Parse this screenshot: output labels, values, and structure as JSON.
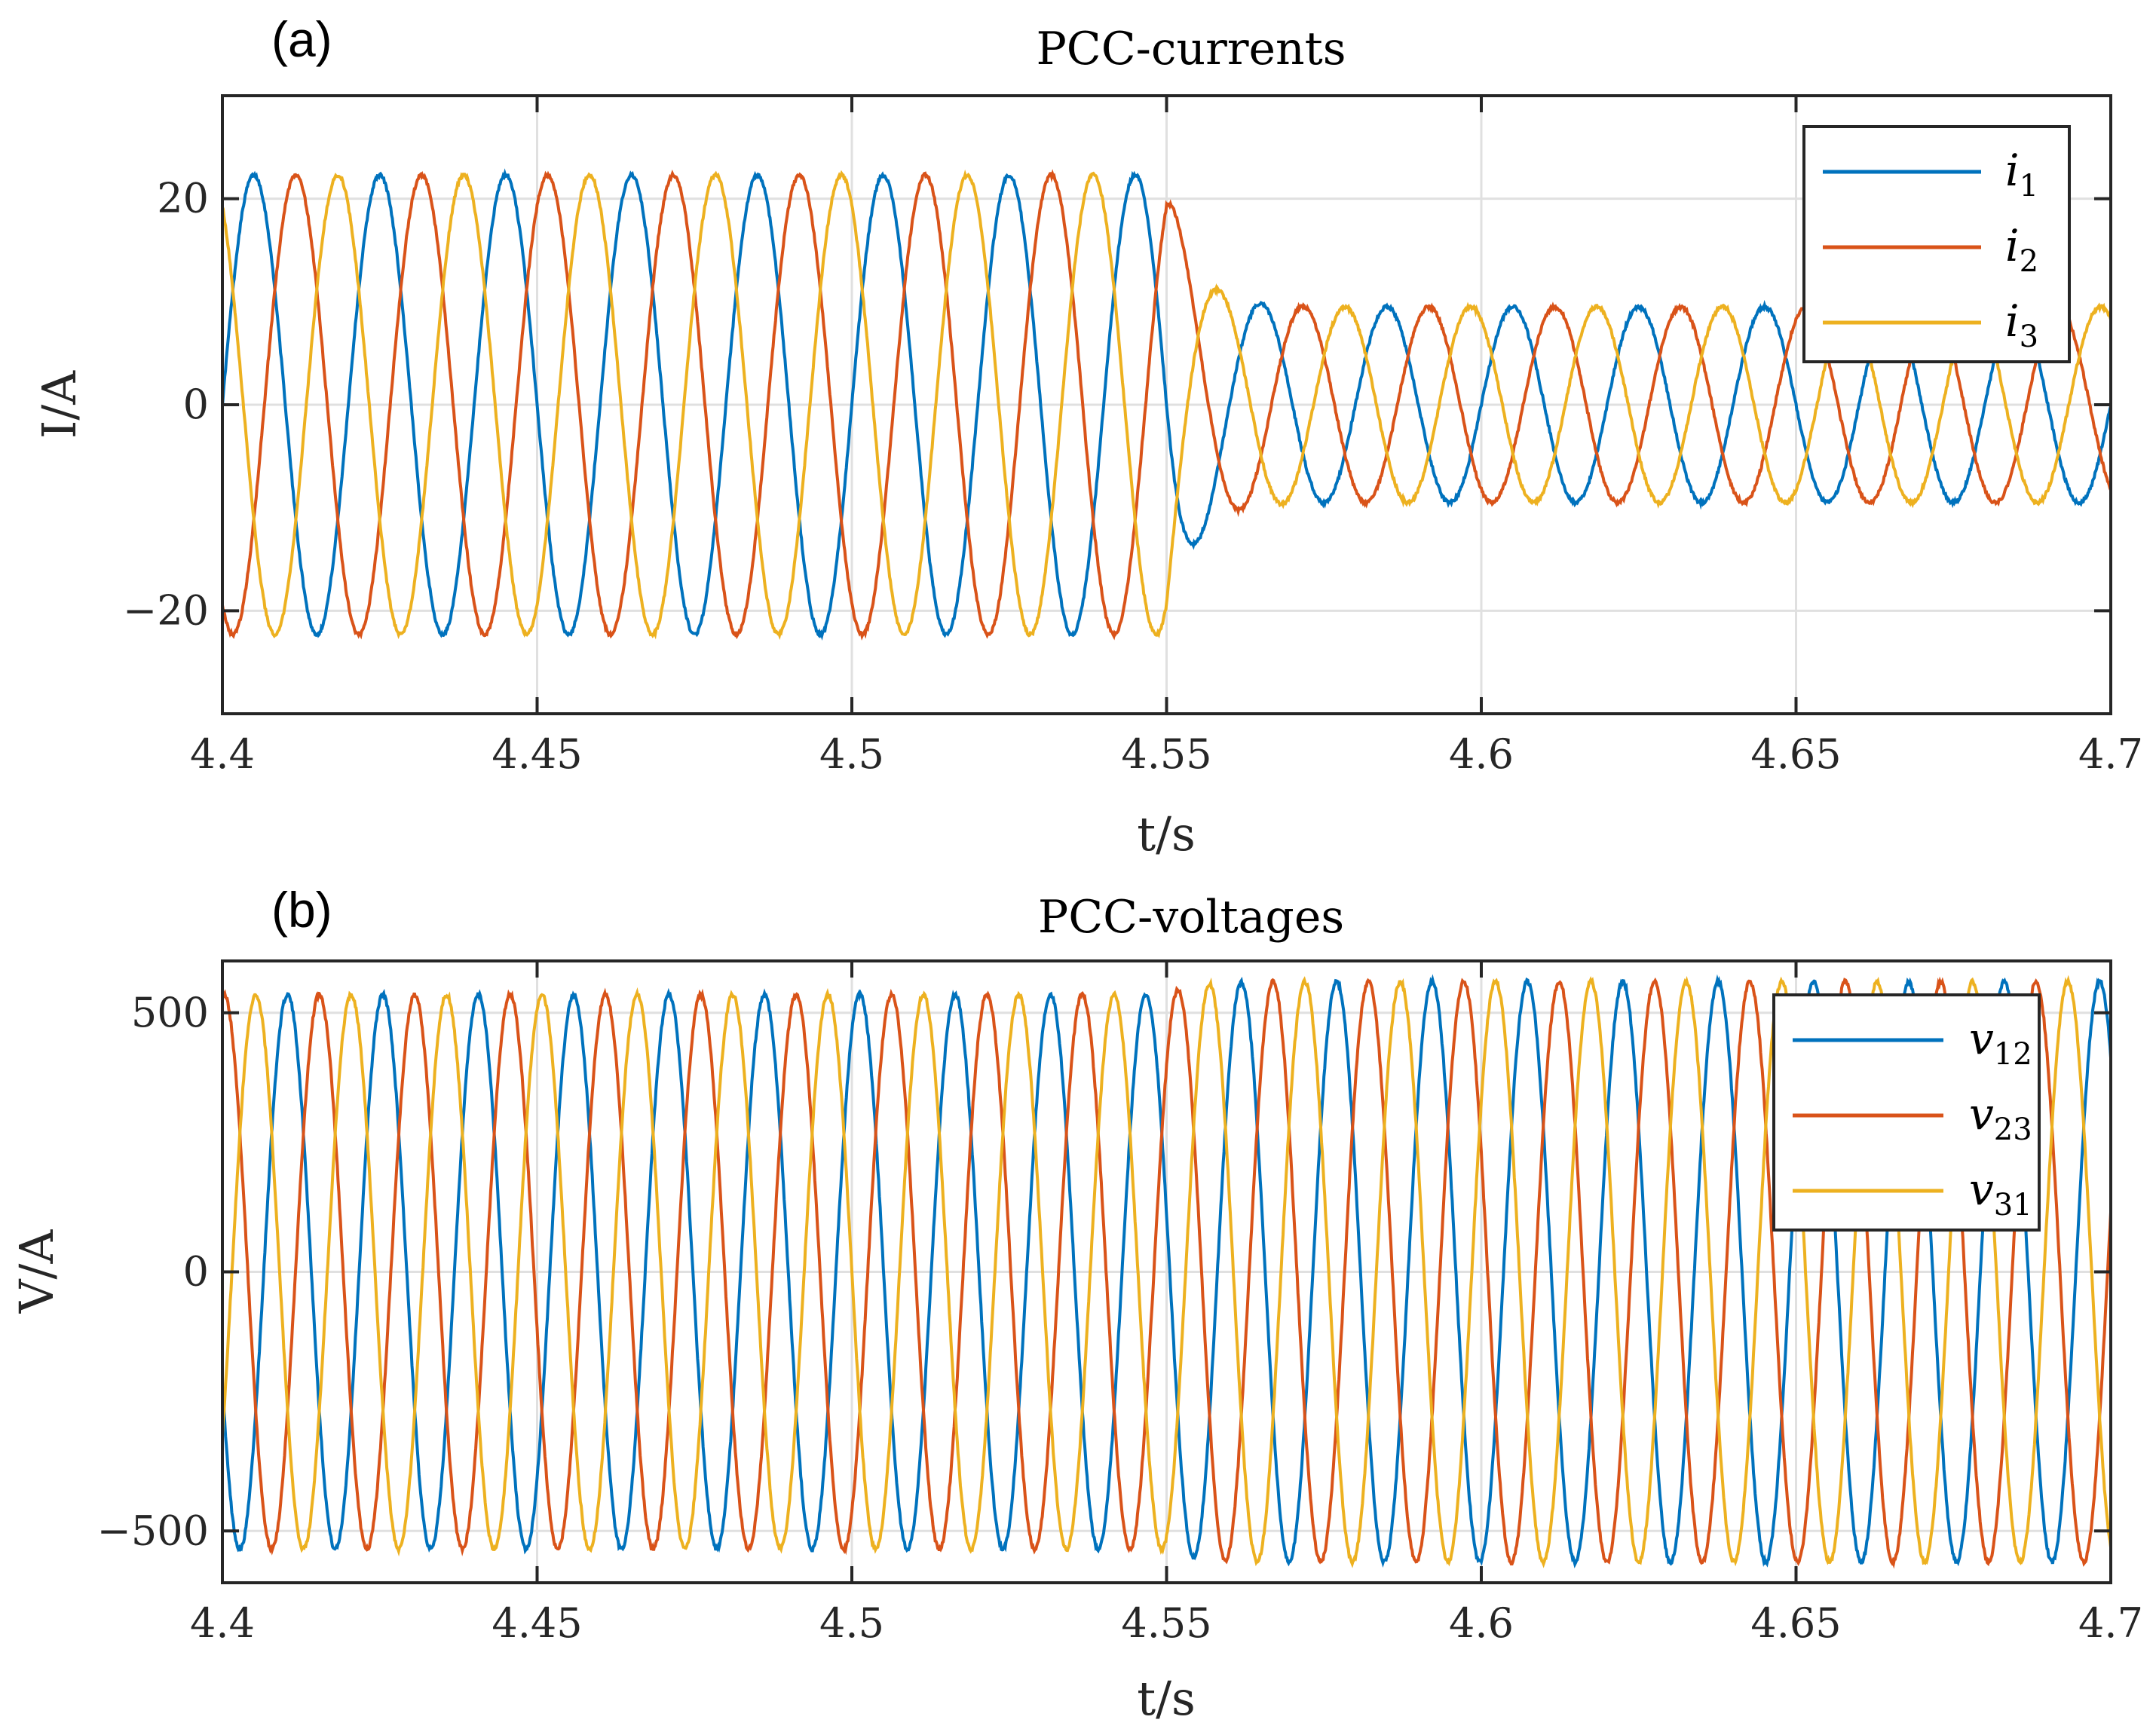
{
  "colors": {
    "s1": "#0072BD",
    "s2": "#D95319",
    "s3": "#EDB120"
  },
  "chart_data": [
    {
      "type": "line",
      "panel_tag": "(a)",
      "title": "PCC-currents",
      "xlabel": "t/s",
      "ylabel": "I/A",
      "xlim": [
        4.4,
        4.7
      ],
      "ylim": [
        -30,
        30
      ],
      "xticks": [
        4.4,
        4.45,
        4.5,
        4.55,
        4.6,
        4.65,
        4.7
      ],
      "xtick_labels": [
        "4.4",
        "4.45",
        "4.5",
        "4.55",
        "4.6",
        "4.65",
        "4.7"
      ],
      "yticks": [
        -20,
        0,
        20
      ],
      "ytick_labels": [
        "−20",
        "0",
        "20"
      ],
      "grid": true,
      "legend_position": "top-right",
      "frequency_hz": 50,
      "event_time": 4.55,
      "series": [
        {
          "name": "i",
          "sub": "1",
          "color_key": "s1",
          "amp_before": 22.3,
          "amp_after": 9.5,
          "phase_deg": 0
        },
        {
          "name": "i",
          "sub": "2",
          "color_key": "s2",
          "amp_before": 22.3,
          "amp_after": 9.5,
          "phase_deg": -120
        },
        {
          "name": "i",
          "sub": "3",
          "color_key": "s3",
          "amp_before": 22.3,
          "amp_after": 9.5,
          "phase_deg": 120
        }
      ]
    },
    {
      "type": "line",
      "panel_tag": "(b)",
      "title": "PCC-voltages",
      "xlabel": "t/s",
      "ylabel": "V/A",
      "xlim": [
        4.4,
        4.7
      ],
      "ylim": [
        -600,
        600
      ],
      "xticks": [
        4.4,
        4.45,
        4.5,
        4.55,
        4.6,
        4.65,
        4.7
      ],
      "xtick_labels": [
        "4.4",
        "4.45",
        "4.5",
        "4.55",
        "4.6",
        "4.65",
        "4.7"
      ],
      "yticks": [
        -500,
        0,
        500
      ],
      "ytick_labels": [
        "−500",
        "0",
        "500"
      ],
      "grid": true,
      "legend_position": "top-right",
      "frequency_hz": 66,
      "event_time": 4.55,
      "series": [
        {
          "name": "v",
          "sub": "12",
          "color_key": "s1",
          "amp_before": 535,
          "amp_after": 560,
          "phase_deg": 60
        },
        {
          "name": "v",
          "sub": "23",
          "color_key": "s2",
          "amp_before": 535,
          "amp_after": 560,
          "phase_deg": -60
        },
        {
          "name": "v",
          "sub": "31",
          "color_key": "s3",
          "amp_before": 535,
          "amp_after": 560,
          "phase_deg": 180
        }
      ]
    }
  ]
}
